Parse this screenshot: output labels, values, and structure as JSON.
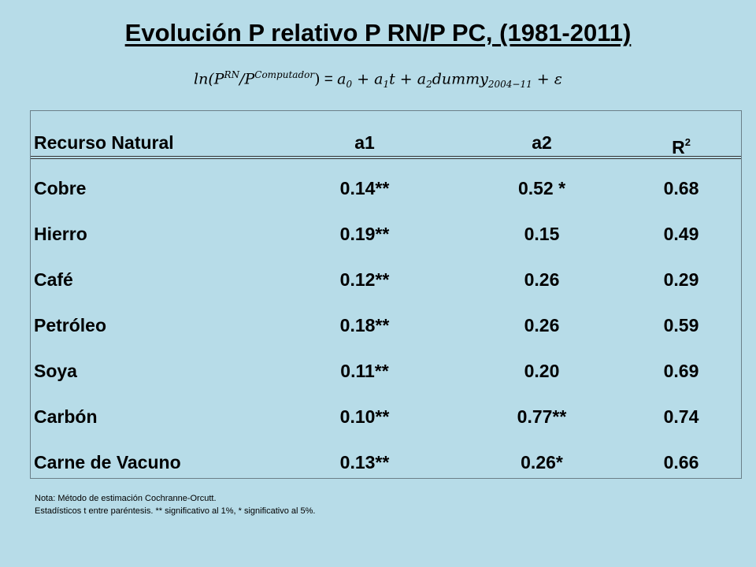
{
  "title": "Evolución P relativo P RN/P PC, (1981-2011)",
  "formula": {
    "lhs_ln": "ln(P",
    "lhs_sup1": "RN",
    "lhs_slash": "/P",
    "lhs_sup2": "Computador",
    "lhs_close": ")",
    "equals": " = ",
    "a0": "a",
    "a0_sub": "0",
    "plus1": " + ",
    "a1": "a",
    "a1_sub": "1",
    "t": "t",
    "plus2": " + ",
    "a2": "a",
    "a2_sub": "2",
    "dummy": "dummy",
    "dummy_sub": "2004−11",
    "plus3": " + ",
    "eps": "ε"
  },
  "table": {
    "headers": {
      "resource": "Recurso Natural",
      "a1": "a1",
      "a2": "a2",
      "r2_base": "R",
      "r2_sup": "2"
    },
    "rows": [
      {
        "resource": "Cobre",
        "a1": "0.14**",
        "a2": "0.52 *",
        "r2": "0.68"
      },
      {
        "resource": "Hierro",
        "a1": "0.19**",
        "a2": "0.15",
        "r2": "0.49"
      },
      {
        "resource": "Café",
        "a1": "0.12**",
        "a2": "0.26",
        "r2": "0.29"
      },
      {
        "resource": "Petróleo",
        "a1": "0.18**",
        "a2": "0.26",
        "r2": "0.59"
      },
      {
        "resource": "Soya",
        "a1": "0.11**",
        "a2": "0.20",
        "r2": "0.69"
      },
      {
        "resource": "Carbón",
        "a1": "0.10**",
        "a2": "0.77**",
        "r2": "0.74"
      },
      {
        "resource": "Carne de Vacuno",
        "a1": "0.13**",
        "a2": "0.26*",
        "r2": "0.66"
      }
    ]
  },
  "notes": {
    "line1": "Nota: Método de estimación Cochranne-Orcutt.",
    "line2": "Estadísticos t entre paréntesis. ** significativo al 1%, * significativo al 5%."
  }
}
